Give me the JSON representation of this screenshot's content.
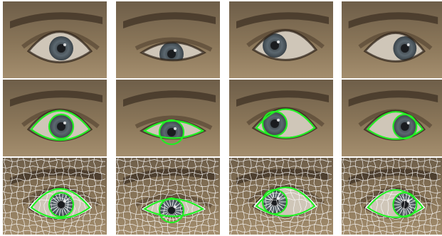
{
  "figure": {
    "rows": [
      {
        "type": "photo"
      },
      {
        "type": "contour"
      },
      {
        "type": "mesh"
      }
    ],
    "columns": [
      {
        "gaze": "center",
        "lid": "open"
      },
      {
        "gaze": "down",
        "lid": "half"
      },
      {
        "gaze": "up-left",
        "lid": "open"
      },
      {
        "gaze": "right",
        "lid": "open"
      }
    ],
    "colors": {
      "skin_top": "#6e5e49",
      "skin_mid": "#8a7659",
      "skin_low": "#a48e6e",
      "brow": "#3f3224",
      "lid_crease": "#4b3a2a",
      "sclera": "#cfc6b8",
      "iris": "#5c6870",
      "pupil": "#1a1c1f",
      "contour": "#22ee22",
      "mesh": "#ffffff"
    }
  }
}
